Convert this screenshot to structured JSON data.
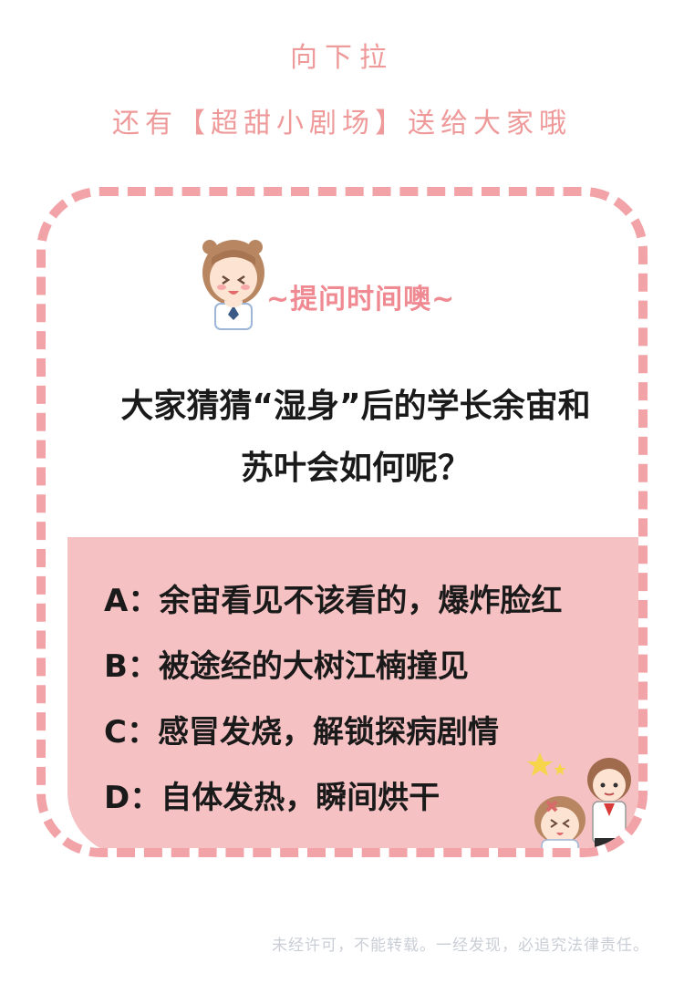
{
  "header": {
    "line1": "向下拉",
    "line2": "还有【超甜小剧场】送给大家哦"
  },
  "card": {
    "tag": "~提问时间噢~",
    "question_line1": "大家猜猜“湿身”后的学长余宙和",
    "question_line2": "苏叶会如何呢？",
    "options": [
      "A：余宙看见不该看的，爆炸脸红",
      "B：被途经的大树江楠撞见",
      "C：感冒发烧，解锁探病剧情",
      "D：自体发热，瞬间烘干"
    ]
  },
  "footer": {
    "notice": "未经许可，不能转载。一经发现，必追究法律责任。"
  },
  "colors": {
    "accent_pink": "#ef9a9a",
    "border_pink": "#f2a3a7",
    "panel_pink": "#f6c1c3"
  }
}
